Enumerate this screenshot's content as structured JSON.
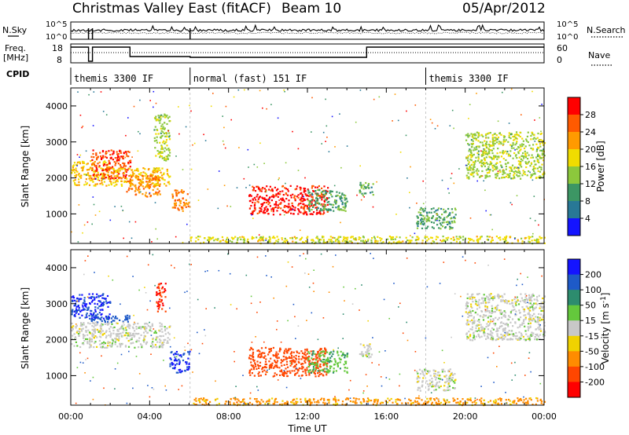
{
  "header": {
    "station": "Christmas Valley East (fitACF)",
    "beam": "Beam 10",
    "date": "05/Apr/2012"
  },
  "top_panels": {
    "nsky_label": "N.Sky",
    "nsearch_label": "N.Search",
    "nsky_ticks": [
      "10^5",
      "10^0"
    ],
    "freq_label_line1": "Freq.",
    "freq_label_line2": "[MHz]",
    "freq_ticks": [
      "18",
      "8"
    ],
    "nave_label": "Nave",
    "nave_ticks": [
      "60",
      "0"
    ],
    "cpid_label": "CPID",
    "cpid_segments": [
      {
        "start_hour": 0,
        "end_hour": 6.05,
        "label": "themis 3300 IF"
      },
      {
        "start_hour": 6.05,
        "end_hour": 18.0,
        "label": "normal (fast) 151 IF"
      },
      {
        "start_hour": 18.0,
        "end_hour": 24,
        "label": "themis 3300 IF"
      }
    ],
    "freq_mhz": [
      {
        "start_hour": 0,
        "end_hour": 0.9,
        "value": 17
      },
      {
        "start_hour": 0.9,
        "end_hour": 1.1,
        "value": 8
      },
      {
        "start_hour": 1.1,
        "end_hour": 3.0,
        "value": 17
      },
      {
        "start_hour": 3.0,
        "end_hour": 6.05,
        "value": 11
      },
      {
        "start_hour": 6.05,
        "end_hour": 15.0,
        "value": 10.5
      },
      {
        "start_hour": 15.0,
        "end_hour": 24,
        "value": 17
      }
    ]
  },
  "axes": {
    "ylabel": "Slant Range [km]",
    "xlabel": "Time UT",
    "x_ticks": [
      "00:00",
      "04:00",
      "08:00",
      "12:00",
      "16:00",
      "20:00",
      "00:00"
    ],
    "y_ticks": [
      "1000",
      "2000",
      "3000",
      "4000"
    ]
  },
  "power_colorbar": {
    "label": "Power [dB]",
    "ticks": [
      "28",
      "24",
      "20",
      "16",
      "12",
      "8",
      "4"
    ],
    "colors": [
      "#ff0000",
      "#ff5a00",
      "#ff9a00",
      "#f0dc00",
      "#8cc83c",
      "#3c9664",
      "#287896",
      "#1414ff"
    ]
  },
  "velocity_colorbar": {
    "label_prefix": "Velocity [m s",
    "label_exp": "-1",
    "label_suffix": "]",
    "ticks": [
      "200",
      "100",
      "50",
      "15",
      "-15",
      "-50",
      "-100",
      "-200"
    ],
    "colors": [
      "#1414ff",
      "#1e5ac8",
      "#2d8c6e",
      "#64c83c",
      "#c8c8c8",
      "#f0d200",
      "#ff8c00",
      "#ff4600",
      "#ff0000"
    ]
  },
  "chart_data": [
    {
      "type": "heatmap",
      "title": "Power",
      "x_range_hours": [
        0,
        24
      ],
      "y_range_km": [
        180,
        4500
      ],
      "value_label": "Power [dB]",
      "value_range": [
        0,
        30
      ],
      "regions": [
        {
          "t0": 0.0,
          "t1": 2.0,
          "r0": 1800,
          "r1": 2500,
          "value": 18
        },
        {
          "t0": 1.0,
          "t1": 3.0,
          "r0": 2000,
          "r1": 2800,
          "value": 26
        },
        {
          "t0": 2.0,
          "t1": 5.0,
          "r0": 1800,
          "r1": 2300,
          "value": 18
        },
        {
          "t0": 2.8,
          "t1": 4.5,
          "r0": 1500,
          "r1": 2100,
          "value": 22
        },
        {
          "t0": 4.2,
          "t1": 5.0,
          "r0": 2500,
          "r1": 3800,
          "value": 14
        },
        {
          "t0": 5.1,
          "t1": 6.0,
          "r0": 1100,
          "r1": 1700,
          "value": 22
        },
        {
          "t0": 9.0,
          "t1": 13.0,
          "r0": 1000,
          "r1": 1800,
          "value": 28
        },
        {
          "t0": 12.0,
          "t1": 14.0,
          "r0": 1100,
          "r1": 1700,
          "value": 10
        },
        {
          "t0": 14.6,
          "t1": 15.3,
          "r0": 1500,
          "r1": 1900,
          "value": 10
        },
        {
          "t0": 17.5,
          "t1": 19.5,
          "r0": 600,
          "r1": 1200,
          "value": 10
        },
        {
          "t0": 20.0,
          "t1": 24.0,
          "r0": 2000,
          "r1": 3300,
          "value": 14
        },
        {
          "t0": 6.0,
          "t1": 24.0,
          "r0": 200,
          "r1": 400,
          "value": 16
        }
      ]
    },
    {
      "type": "heatmap",
      "title": "Velocity",
      "x_range_hours": [
        0,
        24
      ],
      "y_range_km": [
        180,
        4500
      ],
      "value_label": "Velocity [m s-1]",
      "value_range": [
        -200,
        200
      ],
      "regions": [
        {
          "t0": 0.0,
          "t1": 2.0,
          "r0": 2600,
          "r1": 3300,
          "value": 200
        },
        {
          "t0": 1.0,
          "t1": 3.0,
          "r0": 2500,
          "r1": 2700,
          "value": 150
        },
        {
          "t0": 0.0,
          "t1": 5.0,
          "r0": 1800,
          "r1": 2500,
          "value": 0
        },
        {
          "t0": 4.3,
          "t1": 4.8,
          "r0": 2800,
          "r1": 3600,
          "value": -200
        },
        {
          "t0": 5.0,
          "t1": 6.0,
          "r0": 1100,
          "r1": 1700,
          "value": 200
        },
        {
          "t0": 9.0,
          "t1": 13.0,
          "r0": 1000,
          "r1": 1800,
          "value": -180
        },
        {
          "t0": 12.0,
          "t1": 14.0,
          "r0": 1100,
          "r1": 1700,
          "value": 40
        },
        {
          "t0": 14.6,
          "t1": 15.3,
          "r0": 1500,
          "r1": 1900,
          "value": 0
        },
        {
          "t0": 17.5,
          "t1": 19.5,
          "r0": 600,
          "r1": 1200,
          "value": 0
        },
        {
          "t0": 20.0,
          "t1": 24.0,
          "r0": 2000,
          "r1": 3300,
          "value": 0
        },
        {
          "t0": 6.0,
          "t1": 24.0,
          "r0": 200,
          "r1": 400,
          "value": -60
        }
      ]
    }
  ]
}
